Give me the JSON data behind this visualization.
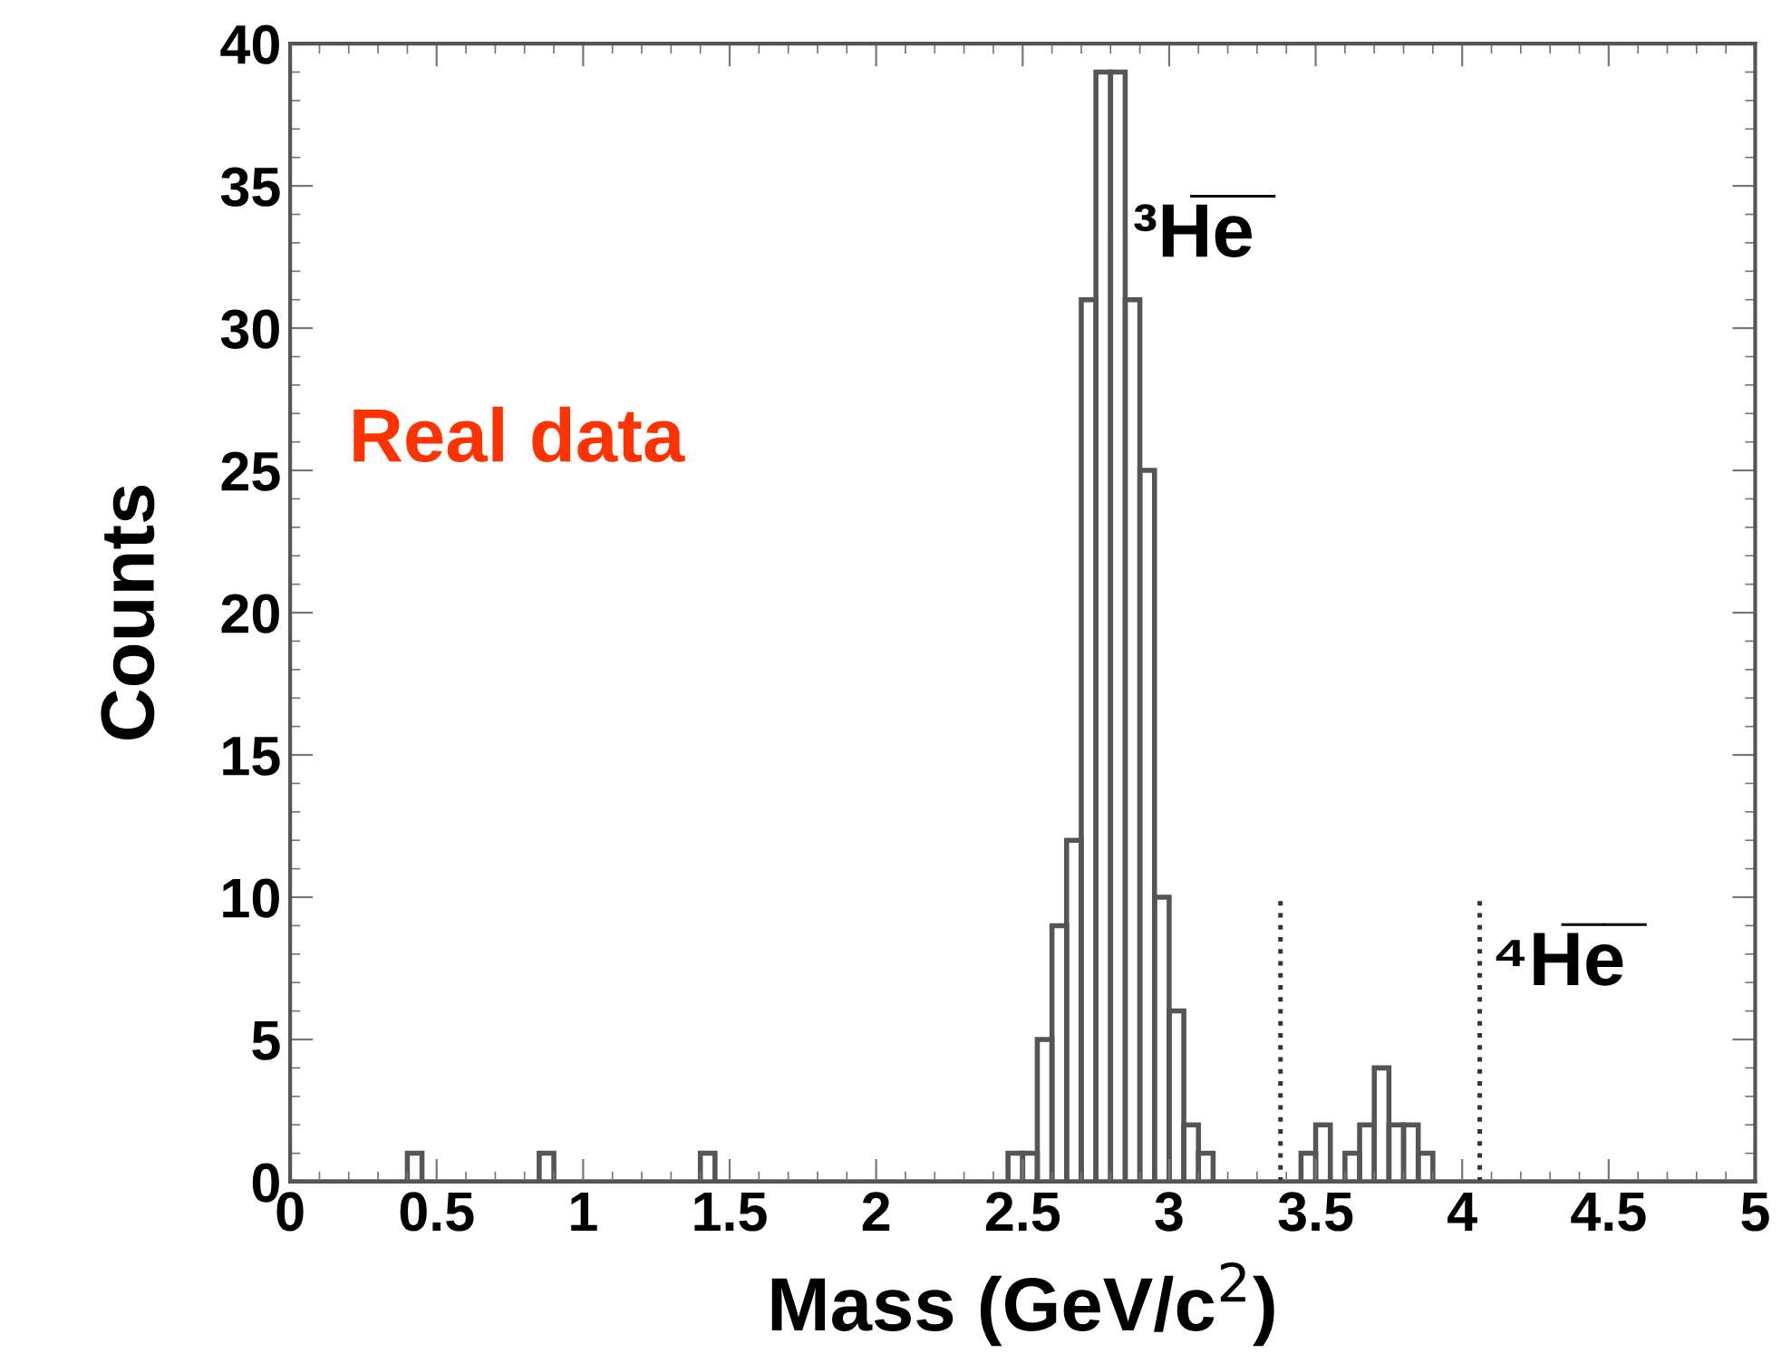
{
  "chart_data": {
    "type": "histogram",
    "xlabel": "Mass (GeV/c$^{2}$)",
    "ylabel": "Counts",
    "bins": [
      0,
      0.05,
      0.1,
      0.15,
      0.2,
      0.25,
      0.3,
      0.35,
      0.4,
      0.45,
      0.5,
      0.55,
      0.6,
      0.65,
      0.7,
      0.75,
      0.8,
      0.85,
      0.9,
      0.95,
      1,
      1.05,
      1.1,
      1.15,
      1.2,
      1.25,
      1.3,
      1.35,
      1.4,
      1.45,
      1.5,
      1.55,
      1.6,
      1.65,
      1.7,
      1.75,
      1.8,
      1.85,
      1.9,
      1.95,
      2,
      2.05,
      2.1,
      2.15,
      2.2,
      2.25,
      2.3,
      2.35,
      2.4,
      2.45,
      2.5,
      2.55,
      2.6,
      2.65,
      2.7,
      2.75,
      2.8,
      2.85,
      2.9,
      2.95,
      3,
      3.05,
      3.1,
      3.15,
      3.2,
      3.25,
      3.3,
      3.35,
      3.4,
      3.45,
      3.5,
      3.55,
      3.6,
      3.65,
      3.7,
      3.75,
      3.8,
      3.85,
      3.9,
      3.95,
      4,
      4.05,
      4.1,
      4.15,
      4.2,
      4.25,
      4.3,
      4.35,
      4.4,
      4.45,
      4.5,
      4.55,
      4.6,
      4.65,
      4.7,
      4.75,
      4.8,
      4.85,
      4.9,
      4.95,
      5
    ],
    "values": [
      0,
      0,
      0,
      0,
      0,
      0,
      0,
      0,
      1,
      0,
      0,
      0,
      0,
      0,
      0,
      0,
      0,
      1,
      0,
      0,
      0,
      0,
      0,
      0,
      0,
      0,
      0,
      0,
      1,
      0,
      0,
      0,
      0,
      0,
      0,
      0,
      0,
      0,
      0,
      0,
      0,
      0,
      0,
      0,
      0,
      0,
      0,
      0,
      0,
      1,
      1,
      5,
      9,
      12,
      31,
      39,
      39,
      31,
      25,
      10,
      6,
      2,
      1,
      0,
      0,
      0,
      0,
      0,
      0,
      1,
      2,
      0,
      1,
      2,
      4,
      2,
      2,
      1,
      0,
      0,
      0,
      0,
      0,
      0,
      0,
      0,
      0,
      0,
      0,
      0,
      0,
      0,
      0,
      0,
      0,
      0,
      0,
      0,
      0,
      0
    ],
    "color": "#555555",
    "xlim": [
      0,
      5
    ],
    "ylim": [
      0,
      40
    ],
    "xticks": [
      0,
      0.5,
      1,
      1.5,
      2,
      2.5,
      3,
      3.5,
      4,
      4.5,
      5
    ],
    "yticks": [
      0,
      5,
      10,
      15,
      20,
      25,
      30,
      35,
      40
    ],
    "grid": false,
    "ref_lines": [
      {
        "axis": "x",
        "value": 3.38,
        "line_style": "dotted",
        "color": "#333333"
      },
      {
        "axis": "x",
        "value": 4.06,
        "line_style": "dotted",
        "color": "#333333"
      }
    ],
    "annotations": [
      "³H̅e̅",
      "⁴H̅e̅",
      "Real data"
    ]
  }
}
